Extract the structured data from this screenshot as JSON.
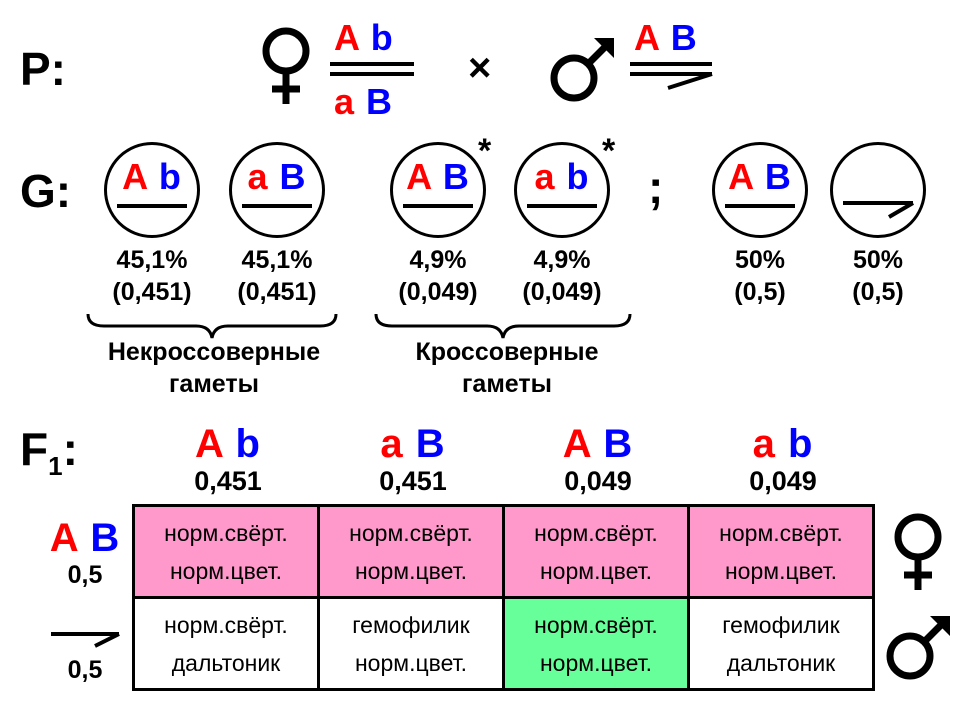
{
  "labels": {
    "parents": "P:",
    "gametes": "G:",
    "f1_main": "F",
    "f1_sub": "1",
    "f1_colon": ":"
  },
  "cross_symbol": "×",
  "separator": ";",
  "asterisk": "*",
  "parents": {
    "female": {
      "top": [
        "A",
        "b"
      ],
      "bottom": [
        "a",
        "B"
      ]
    },
    "male": {
      "top": [
        "A",
        "B"
      ]
    }
  },
  "gametes": [
    {
      "allele": [
        "A",
        "b"
      ],
      "percent": "45,1%",
      "fraction": "(0,451)"
    },
    {
      "allele": [
        "a",
        "B"
      ],
      "percent": "45,1%",
      "fraction": "(0,451)"
    },
    {
      "allele": [
        "A",
        "B"
      ],
      "percent": "4,9%",
      "fraction": "(0,049)"
    },
    {
      "allele": [
        "a",
        "b"
      ],
      "percent": "4,9%",
      "fraction": "(0,049)"
    },
    {
      "allele": [
        "A",
        "B"
      ],
      "percent": "50%",
      "fraction": "(0,5)"
    },
    {
      "allele": [],
      "percent": "50%",
      "fraction": "(0,5)"
    }
  ],
  "groups": {
    "noncrossover": {
      "line1": "Некроссоверные",
      "line2": "гаметы"
    },
    "crossover": {
      "line1": "Кроссоверные",
      "line2": "гаметы"
    }
  },
  "f1": {
    "columns": [
      {
        "allele": [
          "A",
          "b"
        ],
        "freq": "0,451"
      },
      {
        "allele": [
          "a",
          "B"
        ],
        "freq": "0,451"
      },
      {
        "allele": [
          "A",
          "B"
        ],
        "freq": "0,049"
      },
      {
        "allele": [
          "a",
          "b"
        ],
        "freq": "0,049"
      }
    ],
    "rows": [
      {
        "allele": [
          "A",
          "B"
        ],
        "freq": "0,5",
        "cells": [
          [
            "норм.свёрт.",
            "норм.цвет."
          ],
          [
            "норм.свёрт.",
            "норм.цвет."
          ],
          [
            "норм.свёрт.",
            "норм.цвет."
          ],
          [
            "норм.свёрт.",
            "норм.цвет."
          ]
        ]
      },
      {
        "allele": [],
        "freq": "0,5",
        "cells": [
          [
            "норм.свёрт.",
            "дальтоник"
          ],
          [
            "гемофилик",
            "норм.цвет."
          ],
          [
            "норм.свёрт.",
            "норм.цвет."
          ],
          [
            "гемофилик",
            "дальтоник"
          ]
        ]
      }
    ]
  },
  "colors": {
    "dominant_red": "#ff0000",
    "recessive_blue": "#0000ff",
    "female_row": "#ff99cc",
    "highlight": "#66ff99"
  }
}
